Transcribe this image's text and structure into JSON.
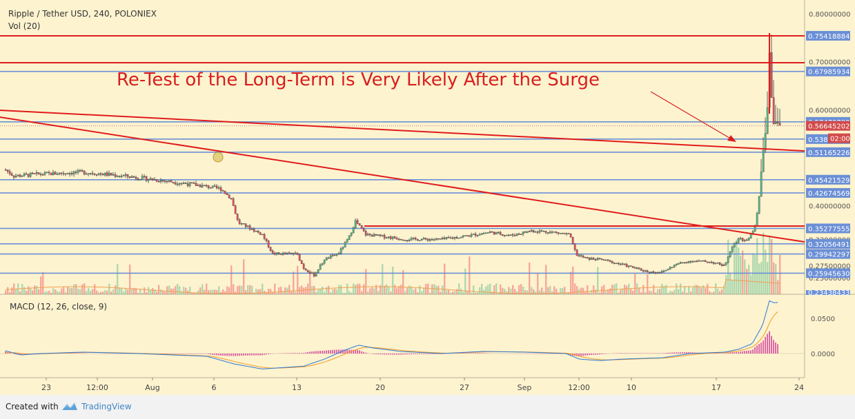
{
  "chart_data": {
    "type": "candlestick",
    "title": "Ripple / Tether USD, 240, POLONIEX",
    "volume_label": "Vol (20)",
    "annotation": "Re-Test of the Long-Term is Very Likely After the Surge",
    "x_ticks": [
      "23",
      "12:00",
      "Aug",
      "6",
      "13",
      "20",
      "27",
      "Sep",
      "12:00",
      "10",
      "17",
      "24"
    ],
    "y_ticks_price": [
      "0.80000000",
      "0.70000000",
      "0.60000000",
      "0.40000000",
      "0.33000000",
      "0.27500000",
      "0.25000000"
    ],
    "y_range_price": [
      0.23,
      0.82
    ],
    "horizontal_levels": [
      {
        "label": "0.75418884",
        "value": 0.75418884
      },
      {
        "label": "0.67985934",
        "value": 0.67985934
      },
      {
        "label": "0.57478788",
        "value": 0.57478788
      },
      {
        "label": "0.53891963",
        "value": 0.53891963
      },
      {
        "label": "0.51165226",
        "value": 0.51165226
      },
      {
        "label": "0.45421529",
        "value": 0.45421529
      },
      {
        "label": "0.42674569",
        "value": 0.42674569
      },
      {
        "label": "0.35277555",
        "value": 0.35277555
      },
      {
        "label": "0.32056491",
        "value": 0.32056491
      },
      {
        "label": "0.29942297",
        "value": 0.29942297
      },
      {
        "label": "0.25945630",
        "value": 0.2594563
      }
    ],
    "current_price": {
      "label": "0.56645202",
      "value": 0.56645202,
      "countdown": "02:00"
    },
    "bottom_partial_label": "0.23438433",
    "macd": {
      "label": "MACD (12, 26, close, 9)",
      "y_ticks": [
        "0.0500",
        "0.0000"
      ],
      "y_range": [
        -0.045,
        0.075
      ]
    },
    "colors": {
      "background": "#fdf3cf",
      "bull": "#53b987",
      "bear": "#eb4d5c",
      "level_line": "#6b8fd6",
      "trend_line": "#e01b1b",
      "macd_line": "#2a78d9",
      "signal_line": "#f29a1f",
      "histogram": "#d13a9c",
      "volume_ma": "#f0a050"
    }
  },
  "footer": {
    "created_with": "Created with",
    "brand": "TradingView"
  }
}
